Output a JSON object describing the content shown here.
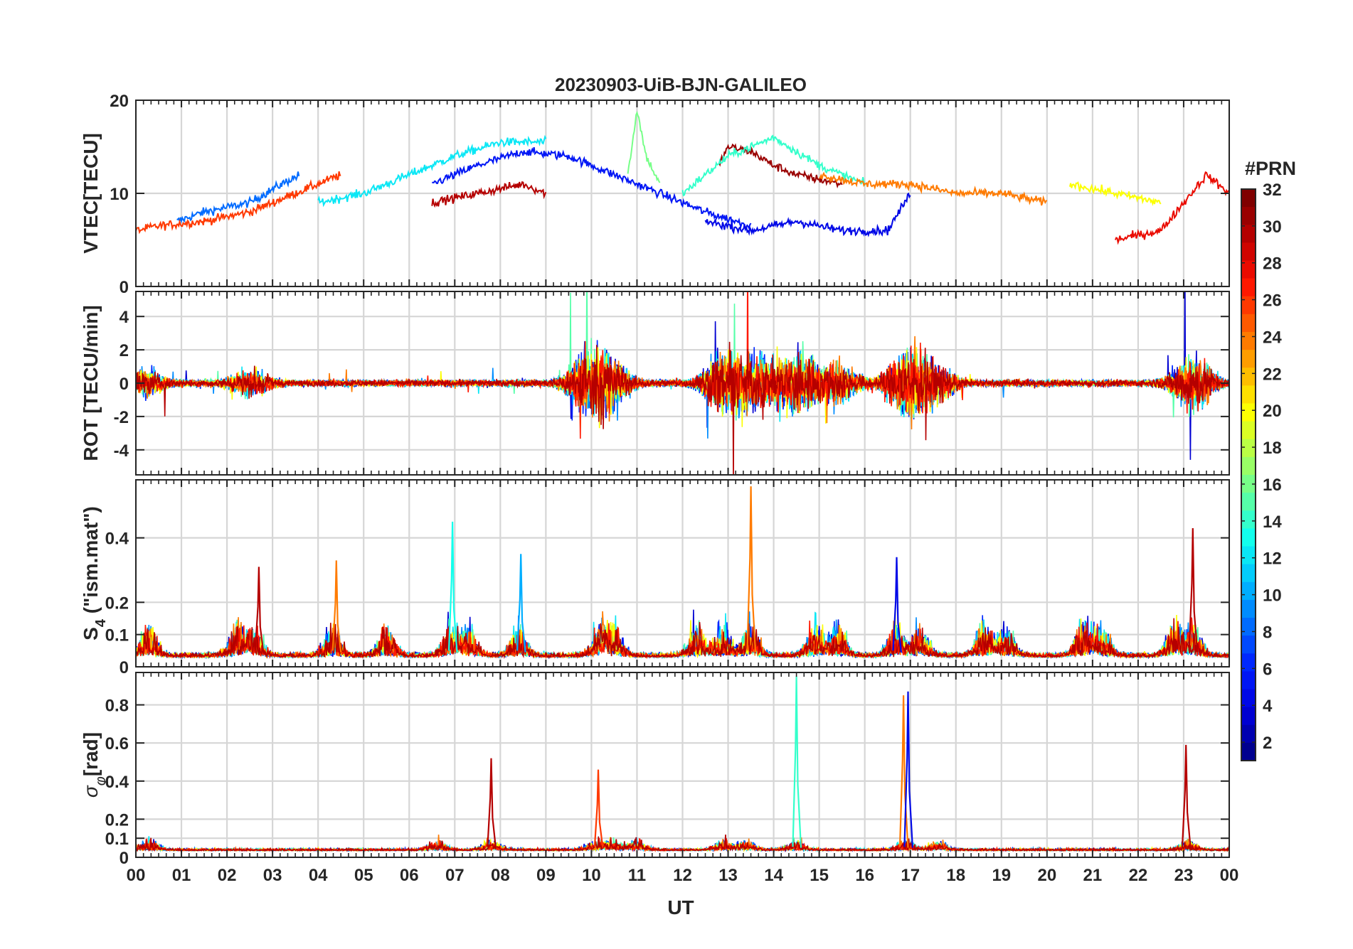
{
  "figure": {
    "title": "20230903-UiB-BJN-GALILEO",
    "xlabel": "UT",
    "x_tick_labels": [
      "00",
      "01",
      "02",
      "03",
      "04",
      "05",
      "06",
      "07",
      "08",
      "09",
      "10",
      "11",
      "12",
      "13",
      "14",
      "15",
      "16",
      "17",
      "18",
      "19",
      "20",
      "21",
      "22",
      "23",
      "00"
    ]
  },
  "colorbar": {
    "title": "#PRN",
    "tick_labels": [
      "2",
      "4",
      "6",
      "8",
      "10",
      "12",
      "14",
      "16",
      "18",
      "20",
      "22",
      "24",
      "26",
      "28",
      "30",
      "32"
    ],
    "range": [
      1,
      32
    ],
    "colormap": "jet",
    "colors": [
      "#00008f",
      "#0000df",
      "#0020ff",
      "#0070ff",
      "#00c0ff",
      "#10ffef",
      "#60ff9f",
      "#b0ff4f",
      "#ffff00",
      "#ffaf00",
      "#ff5f00",
      "#ff1000",
      "#bf0000",
      "#800000"
    ]
  },
  "chart_data": [
    {
      "type": "line",
      "panel": "VTEC",
      "ylabel": "VTEC[TECU]",
      "ylim": [
        0,
        20
      ],
      "xlim": [
        0,
        24
      ],
      "grid": true,
      "y_tick_labels": [
        "0",
        "10",
        "20"
      ],
      "y_ticks": [
        0,
        10,
        20
      ],
      "series_style": "one line per PRN, colored by PRN",
      "series": [
        {
          "prn": 8,
          "x": [
            0.9,
            1.5,
            2.5,
            3.2,
            3.6
          ],
          "values": [
            7,
            8,
            9,
            11,
            12
          ]
        },
        {
          "prn": 26,
          "x": [
            0,
            0.5,
            1.5,
            2.5,
            3.5,
            4.5
          ],
          "values": [
            6,
            6.5,
            7,
            8,
            10,
            12
          ]
        },
        {
          "prn": 12,
          "x": [
            4,
            5,
            6,
            7,
            8,
            9
          ],
          "values": [
            9,
            10,
            12,
            14,
            15.5,
            15.5
          ]
        },
        {
          "prn": 5,
          "x": [
            6.5,
            7.5,
            8.5,
            9.5,
            10.5,
            11.5,
            12.5,
            13.5
          ],
          "values": [
            11,
            13,
            14.5,
            14,
            12,
            10,
            8,
            6.5
          ]
        },
        {
          "prn": 30,
          "x": [
            6.5,
            7,
            7.5,
            8,
            8.5,
            9
          ],
          "values": [
            9,
            9.5,
            10,
            10.5,
            11,
            10
          ]
        },
        {
          "prn": 16,
          "x": [
            10.8,
            11,
            11.2,
            11.5
          ],
          "values": [
            12,
            19,
            14,
            11
          ]
        },
        {
          "prn": 31,
          "x": [
            12.8,
            13,
            13.5,
            14,
            14.5,
            15.5
          ],
          "values": [
            13,
            15,
            14.5,
            13,
            12,
            11
          ]
        },
        {
          "prn": 14,
          "x": [
            12,
            13,
            14,
            15,
            16
          ],
          "values": [
            10,
            14,
            16,
            13,
            11
          ]
        },
        {
          "prn": 4,
          "x": [
            12.5,
            13.5,
            14.5,
            15.5,
            16.5,
            17
          ],
          "values": [
            7,
            6,
            7,
            6,
            6,
            10
          ]
        },
        {
          "prn": 24,
          "x": [
            15,
            16,
            17,
            18,
            19,
            20
          ],
          "values": [
            12,
            11,
            11,
            10,
            10,
            9
          ]
        },
        {
          "prn": 20,
          "x": [
            20.5,
            21,
            21.5,
            22,
            22.5
          ],
          "values": [
            11,
            10.5,
            10,
            9.5,
            9
          ]
        },
        {
          "prn": 28,
          "x": [
            21.5,
            22,
            22.5,
            23,
            23.5,
            24
          ],
          "values": [
            5,
            5.5,
            6,
            9,
            12,
            10
          ]
        }
      ]
    },
    {
      "type": "line",
      "panel": "ROT",
      "ylabel": "ROT [TECU/min]",
      "ylim": [
        -5.5,
        5.5
      ],
      "xlim": [
        0,
        24
      ],
      "grid": true,
      "y_tick_labels": [
        "-4",
        "-2",
        "0",
        "2",
        "4"
      ],
      "y_ticks": [
        -4,
        -2,
        0,
        2,
        4
      ],
      "series_style": "dense noisy traces per PRN around 0; strong spikes near 10, 13, 14.5, 17 and 23 UT"
    },
    {
      "type": "line",
      "panel": "S4",
      "ylabel": "S4 (\"ism.mat\")",
      "ylabel_main": "S",
      "ylabel_sub": "4",
      "ylabel_rest": " (\"ism.mat\")",
      "ylim": [
        0,
        0.58
      ],
      "xlim": [
        0,
        24
      ],
      "grid": true,
      "y_tick_labels": [
        "0",
        "0.1",
        "0.2",
        "0.4"
      ],
      "y_ticks": [
        0,
        0.1,
        0.2,
        0.4
      ],
      "peaks": [
        {
          "x": 2.7,
          "value": 0.31,
          "prn": 30
        },
        {
          "x": 4.4,
          "value": 0.33,
          "prn": 24
        },
        {
          "x": 6.95,
          "value": 0.45,
          "prn": 13
        },
        {
          "x": 8.45,
          "value": 0.35,
          "prn": 10
        },
        {
          "x": 13.5,
          "value": 0.56,
          "prn": 24
        },
        {
          "x": 16.7,
          "value": 0.34,
          "prn": 4
        },
        {
          "x": 23.2,
          "value": 0.43,
          "prn": 30
        }
      ]
    },
    {
      "type": "line",
      "panel": "sigma_phi",
      "ylabel": "σφ[rad]",
      "ylabel_main": "σ",
      "ylabel_sub": "φ",
      "ylabel_rest": "[rad]",
      "ylim": [
        0,
        0.97
      ],
      "xlim": [
        0,
        24
      ],
      "grid": true,
      "y_tick_labels": [
        "0",
        "0.1",
        "0.2",
        "0.4",
        "0.6",
        "0.8"
      ],
      "y_ticks": [
        0,
        0.1,
        0.2,
        0.4,
        0.6,
        0.8
      ],
      "peaks": [
        {
          "x": 7.8,
          "value": 0.52,
          "prn": 30
        },
        {
          "x": 10.15,
          "value": 0.46,
          "prn": 26
        },
        {
          "x": 14.5,
          "value": 0.95,
          "prn": 14
        },
        {
          "x": 16.85,
          "value": 0.85,
          "prn": 24
        },
        {
          "x": 16.95,
          "value": 0.87,
          "prn": 4
        },
        {
          "x": 23.05,
          "value": 0.59,
          "prn": 30
        }
      ]
    }
  ]
}
